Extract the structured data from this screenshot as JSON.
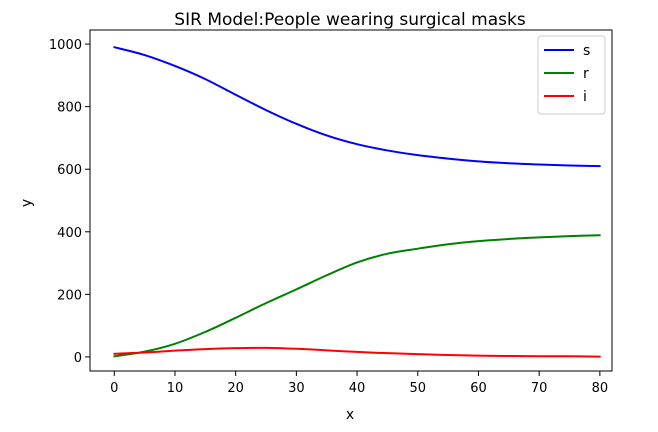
{
  "chart_data": {
    "type": "line",
    "title": "SIR Model:People wearing surgical masks",
    "xlabel": "x",
    "ylabel": "y",
    "xlim": [
      -4,
      82
    ],
    "ylim": [
      -45,
      1045
    ],
    "xticks": [
      0,
      10,
      20,
      30,
      40,
      50,
      60,
      70,
      80
    ],
    "yticks": [
      0,
      200,
      400,
      600,
      800,
      1000
    ],
    "grid": false,
    "legend_position": "top-right",
    "x": [
      0,
      5,
      10,
      15,
      20,
      25,
      30,
      35,
      40,
      45,
      50,
      55,
      60,
      65,
      70,
      75,
      80
    ],
    "series": [
      {
        "name": "s",
        "color": "#0000ff",
        "values": [
          990,
          965,
          930,
          888,
          838,
          789,
          745,
          708,
          680,
          660,
          645,
          634,
          625,
          619,
          615,
          612,
          610
        ]
      },
      {
        "name": "r",
        "color": "#008000",
        "values": [
          2,
          17,
          42,
          80,
          125,
          172,
          216,
          261,
          302,
          330,
          346,
          360,
          370,
          377,
          382,
          386,
          389
        ]
      },
      {
        "name": "i",
        "color": "#ff0000",
        "values": [
          10,
          14,
          20,
          25,
          28,
          29,
          26,
          21,
          16,
          12,
          9,
          6,
          4,
          3,
          2,
          2,
          1
        ]
      }
    ]
  }
}
